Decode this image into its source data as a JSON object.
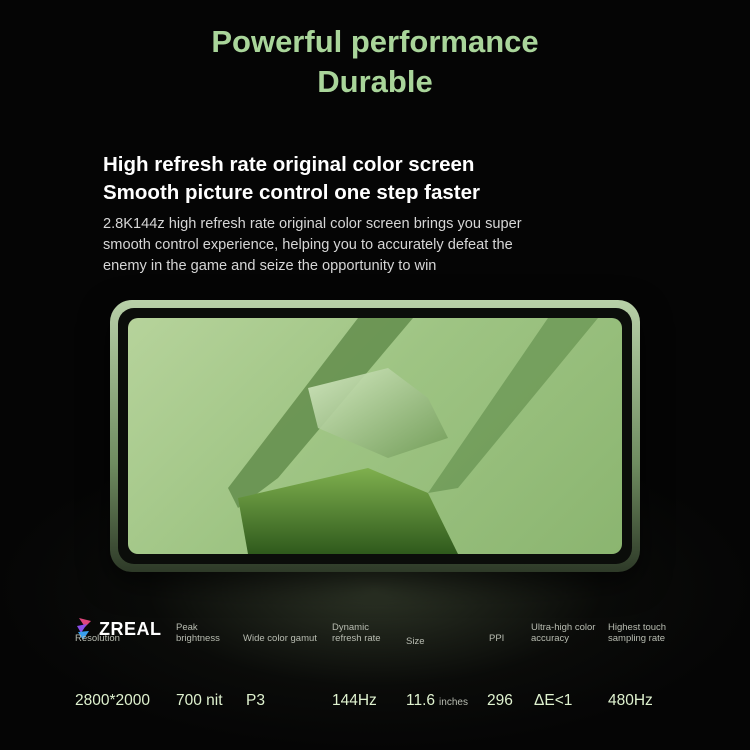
{
  "headline": {
    "line1": "Powerful performance",
    "line2": "Durable"
  },
  "feature": {
    "title_line1": "High refresh rate original color screen",
    "title_line2": "Smooth picture control one step faster",
    "description_lines": [
      "2.8K144z high refresh rate original color screen brings you super",
      "smooth control experience, helping you to accurately defeat the",
      "enemy in the game and seize the opportunity to win"
    ]
  },
  "brand": {
    "name": "ZREAL",
    "icon": "zreal-logo-icon"
  },
  "specs": [
    {
      "label": "Resolution",
      "value": "2800*2000",
      "unit": ""
    },
    {
      "label": "Peak brightness",
      "value": "700 nit",
      "unit": ""
    },
    {
      "label": "Wide color gamut",
      "value": "P3",
      "unit": ""
    },
    {
      "label": "Dynamic refresh rate",
      "value": "144Hz",
      "unit": ""
    },
    {
      "label": "Size",
      "value": "11.6",
      "unit": "inches"
    },
    {
      "label": "PPI",
      "value": "296",
      "unit": ""
    },
    {
      "label": "Ultra-high color accuracy",
      "value": "ΔE<1",
      "unit": ""
    },
    {
      "label": "Highest touch sampling rate",
      "value": "480Hz",
      "unit": ""
    }
  ],
  "colors": {
    "headline": "#a9d59a",
    "background": "#050505",
    "screen": "#9ec483"
  }
}
